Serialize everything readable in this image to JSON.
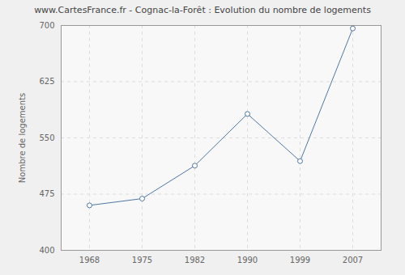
{
  "chart_data": {
    "type": "line",
    "title": "www.CartesFrance.fr - Cognac-la-Forêt : Evolution du nombre de logements",
    "y_label": "Nombre de logements",
    "categories": [
      "1968",
      "1975",
      "1982",
      "1990",
      "1999",
      "2007"
    ],
    "values": [
      460,
      469,
      513,
      582,
      519,
      696
    ],
    "color": "#4f77a3",
    "marker": "circle",
    "ylim": [
      400,
      700
    ],
    "yticks": [
      400,
      475,
      550,
      625,
      700
    ],
    "grid": true
  }
}
